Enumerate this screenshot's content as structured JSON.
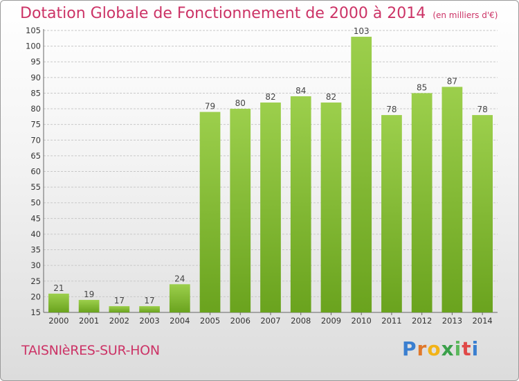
{
  "title": "Dotation Globale de Fonctionnement de 2000 à 2014",
  "unit_note": "(en milliers d'€)",
  "commune": "TAISNIèRES-SUR-HON",
  "logo": {
    "text": "Proxiti",
    "letter_colors": [
      "#3a7fd0",
      "#e0782a",
      "#f2b318",
      "#3aa04a",
      "#5cb85c",
      "#e04848",
      "#3a7fd0"
    ]
  },
  "colors": {
    "title": "#cc3366",
    "bar_top": "#9ccf4c",
    "bar_bottom": "#6aa31e",
    "grid": "#c8c8c8"
  },
  "chart_data": {
    "type": "bar",
    "title": "Dotation Globale de Fonctionnement de 2000 à 2014",
    "subtitle": "(en milliers d'€)",
    "categories": [
      "2000",
      "2001",
      "2002",
      "2003",
      "2004",
      "2005",
      "2006",
      "2007",
      "2008",
      "2009",
      "2010",
      "2011",
      "2012",
      "2013",
      "2014"
    ],
    "values": [
      21,
      19,
      17,
      17,
      24,
      79,
      80,
      82,
      84,
      82,
      103,
      78,
      85,
      87,
      78
    ],
    "ylim": [
      15,
      105
    ],
    "yticks": [
      15,
      20,
      25,
      30,
      35,
      40,
      45,
      50,
      55,
      60,
      65,
      70,
      75,
      80,
      85,
      90,
      95,
      100,
      105
    ],
    "grid": true,
    "data_labels": true
  }
}
